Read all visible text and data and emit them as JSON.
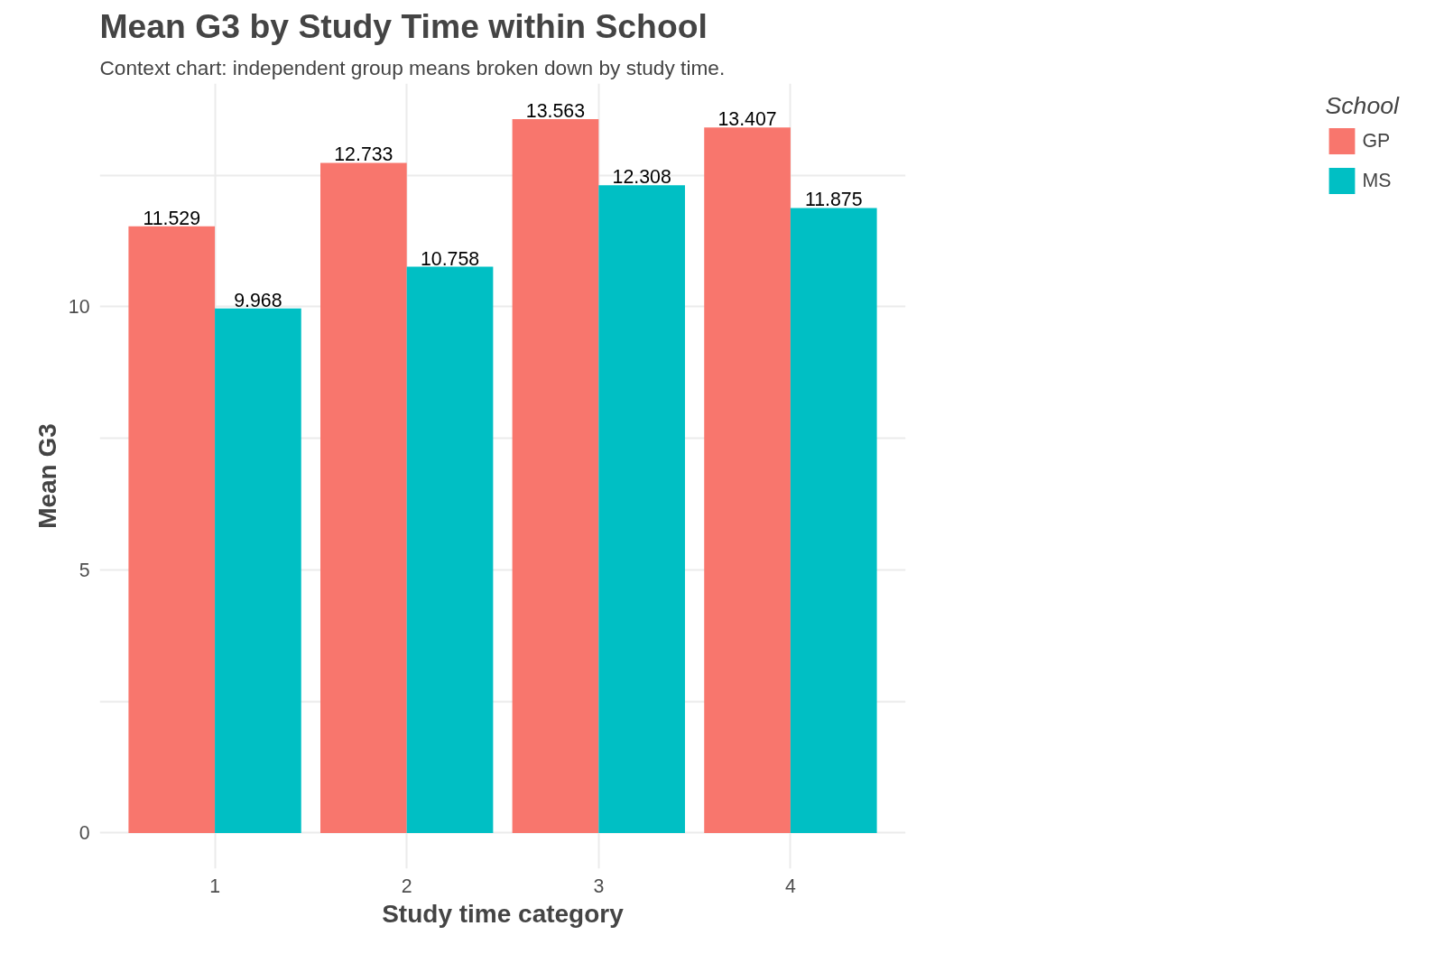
{
  "chart_data": {
    "type": "bar",
    "title": "Mean G3 by Study Time within School",
    "subtitle": "Context chart: independent group means broken down by study time.",
    "xlabel": "Study time category",
    "ylabel": "Mean G3",
    "legend_title": "School",
    "categories": [
      "1",
      "2",
      "3",
      "4"
    ],
    "series": [
      {
        "name": "GP",
        "color": "#f8766d",
        "values": [
          11.529,
          12.733,
          13.563,
          13.407
        ]
      },
      {
        "name": "MS",
        "color": "#00bfc4",
        "values": [
          9.968,
          10.758,
          12.308,
          11.875
        ]
      }
    ],
    "ylim": [
      -0.678,
      14.241
    ],
    "yticks": [
      0,
      {
        "value": 2.5,
        "label": null
      },
      5,
      {
        "value": 7.5,
        "label": null
      },
      10,
      {
        "value": 12.5,
        "label": null
      }
    ],
    "grid": true,
    "legend": "right",
    "data_labels": true
  }
}
